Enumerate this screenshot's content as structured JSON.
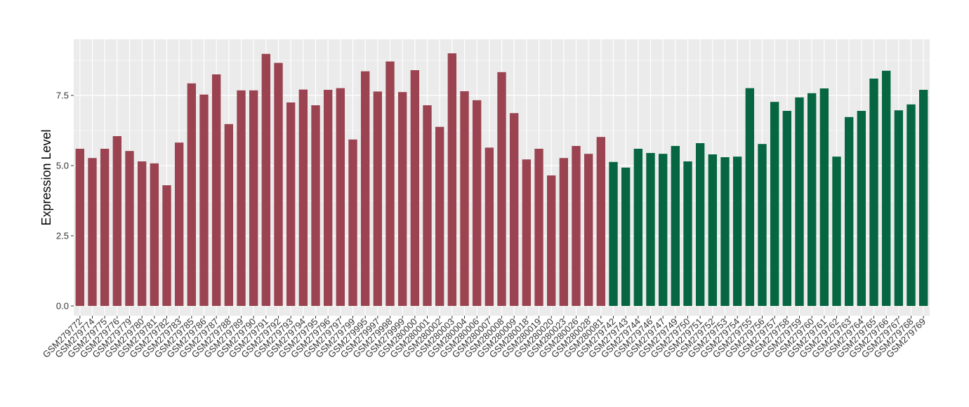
{
  "chart_data": {
    "type": "bar",
    "title": "",
    "xlabel": "",
    "ylabel": "Expression Level",
    "ylim": [
      -0.35,
      9.5
    ],
    "yticks": [
      0.0,
      2.5,
      5.0,
      7.5
    ],
    "ytick_labels": [
      "0.0",
      "2.5",
      "5.0",
      "7.5"
    ],
    "grid": true,
    "panel_background": "#EBEBEB",
    "grid_color": "#FFFFFF",
    "legend": "none",
    "series": [
      {
        "color": "#9B4350",
        "categories": [
          "GSM279772",
          "GSM279774",
          "GSM279775",
          "GSM279776",
          "GSM279779",
          "GSM279780",
          "GSM279781",
          "GSM279782",
          "GSM279783",
          "GSM279785",
          "GSM279786",
          "GSM279787",
          "GSM279788",
          "GSM279789",
          "GSM279790",
          "GSM279791",
          "GSM279792",
          "GSM279793",
          "GSM279794",
          "GSM279795",
          "GSM279796",
          "GSM279797",
          "GSM279799",
          "GSM279995",
          "GSM279997",
          "GSM279998",
          "GSM279999",
          "GSM280000",
          "GSM280001",
          "GSM280002",
          "GSM280003",
          "GSM280004",
          "GSM280006",
          "GSM280007",
          "GSM280008",
          "GSM280009",
          "GSM280018",
          "GSM280019",
          "GSM280020",
          "GSM280023",
          "GSM280026",
          "GSM280028",
          "GSM280081"
        ],
        "values": [
          5.6,
          5.27,
          5.6,
          6.05,
          5.52,
          5.15,
          5.08,
          4.3,
          5.82,
          7.93,
          7.53,
          8.25,
          6.48,
          7.68,
          7.68,
          8.98,
          8.66,
          7.25,
          7.71,
          7.15,
          7.7,
          7.76,
          5.93,
          8.36,
          7.64,
          8.71,
          7.62,
          8.4,
          7.15,
          6.38,
          9.0,
          7.65,
          7.33,
          5.64,
          8.33,
          6.87,
          5.22,
          5.6,
          4.65,
          5.27,
          5.7,
          5.42,
          6.02
        ]
      },
      {
        "color": "#056641",
        "categories": [
          "GSM279742",
          "GSM279743",
          "GSM279744",
          "GSM279746",
          "GSM279747",
          "GSM279749",
          "GSM279750",
          "GSM279751",
          "GSM279752",
          "GSM279753",
          "GSM279754",
          "GSM279755",
          "GSM279756",
          "GSM279757",
          "GSM279758",
          "GSM279759",
          "GSM279760",
          "GSM279761",
          "GSM279762",
          "GSM279763",
          "GSM279764",
          "GSM279765",
          "GSM279766",
          "GSM279767",
          "GSM279768",
          "GSM279769"
        ],
        "values": [
          5.13,
          4.93,
          5.6,
          5.45,
          5.42,
          5.7,
          5.15,
          5.8,
          5.4,
          5.3,
          5.32,
          7.76,
          5.77,
          7.27,
          6.95,
          7.43,
          7.58,
          7.75,
          5.32,
          6.73,
          6.95,
          8.1,
          8.38,
          6.97,
          7.18,
          7.7
        ]
      }
    ]
  }
}
